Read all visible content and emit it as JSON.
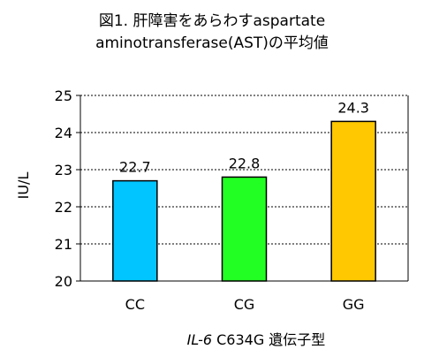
{
  "chart_data": {
    "type": "bar",
    "title_lines": [
      "図1. 肝障害をあらわすaspartate",
      "aminotransferase(AST)の平均値"
    ],
    "categories": [
      "CC",
      "CG",
      "GG"
    ],
    "values": [
      22.7,
      22.8,
      24.3
    ],
    "data_labels": [
      "22.7",
      "22.8",
      "24.3"
    ],
    "bar_colors": [
      "#00c5ff",
      "#22ff22",
      "#ffc800"
    ],
    "ylabel": "IU/L",
    "xlabel_italic": "IL-6",
    "xlabel_rest": " C634G 遺伝子型",
    "ylim": [
      20,
      25
    ],
    "yticks": [
      "20",
      "21",
      "22",
      "23",
      "24",
      "25"
    ],
    "grid": true,
    "legend": "none"
  }
}
